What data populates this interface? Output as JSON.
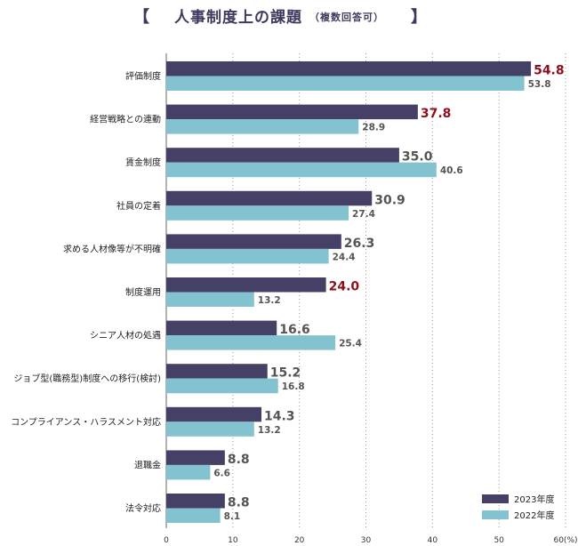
{
  "title": {
    "open": "【",
    "main": "人事制度上の課題",
    "sub": "（複数回答可）",
    "close": "】"
  },
  "colors": {
    "series_2023": "#454066",
    "series_2022": "#82c3cf",
    "highlight": "#8e0f1c",
    "value_text": "#555555",
    "grid": "#9a9a9a"
  },
  "chart_data": {
    "type": "bar",
    "orientation": "horizontal",
    "categories": [
      "評価制度",
      "経営戦略との連動",
      "賃金制度",
      "社員の定着",
      "求める人材像等が不明確",
      "制度運用",
      "シニア人材の処遇",
      "ジョブ型(職務型)制度への移行(検討)",
      "コンプライアンス・ハラスメント対応",
      "退職金",
      "法令対応"
    ],
    "series": [
      {
        "name": "2023年度",
        "values": [
          54.8,
          37.8,
          35.0,
          30.9,
          26.3,
          24.0,
          16.6,
          15.2,
          14.3,
          8.8,
          8.8
        ],
        "labels": [
          "54.8",
          "37.8",
          "35.0",
          "30.9",
          "26.3",
          "24.0",
          "16.6",
          "15.2",
          "14.3",
          "8.8",
          "8.8"
        ],
        "highlighted": [
          true,
          true,
          false,
          false,
          false,
          true,
          false,
          false,
          false,
          false,
          false
        ]
      },
      {
        "name": "2022年度",
        "values": [
          53.8,
          28.9,
          40.6,
          27.4,
          24.4,
          13.2,
          25.4,
          16.8,
          13.2,
          6.6,
          8.1
        ],
        "labels": [
          "53.8",
          "28.9",
          "40.6",
          "27.4",
          "24.4",
          "13.2",
          "25.4",
          "16.8",
          "13.2",
          "6.6",
          "8.1"
        ]
      }
    ],
    "xlim": [
      0,
      60
    ],
    "xticks": [
      "0",
      "10",
      "20",
      "30",
      "40",
      "50",
      "60(%)"
    ],
    "grid": "vertical dotted",
    "legend_position": "bottom-right"
  }
}
